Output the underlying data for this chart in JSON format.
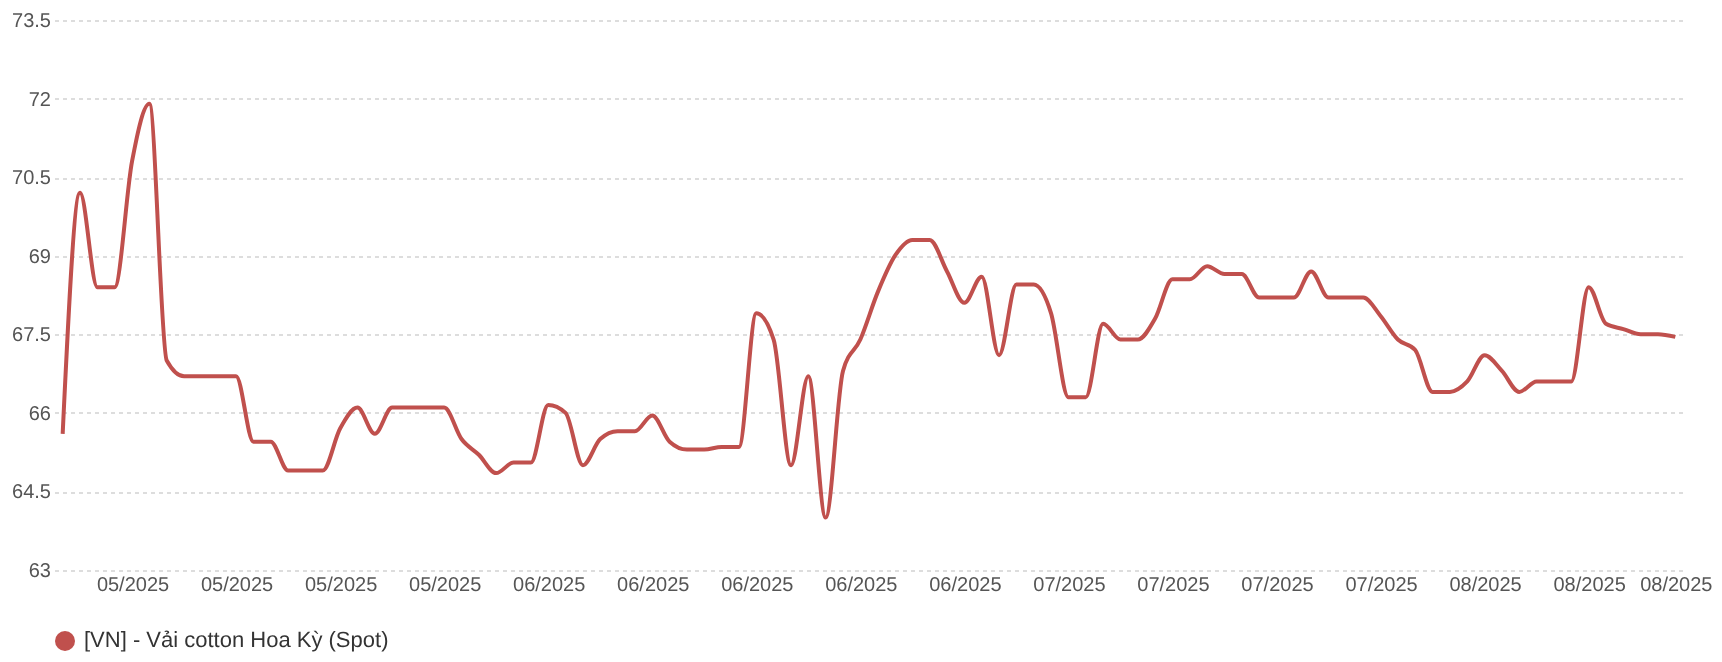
{
  "chart_data": {
    "type": "line",
    "categories": [
      null,
      null,
      null,
      null,
      "05/2025",
      null,
      null,
      null,
      null,
      null,
      "05/2025",
      null,
      null,
      null,
      null,
      null,
      "05/2025",
      null,
      null,
      null,
      null,
      null,
      "05/2025",
      null,
      null,
      null,
      null,
      null,
      "06/2025",
      null,
      null,
      null,
      null,
      null,
      "06/2025",
      null,
      null,
      null,
      null,
      null,
      "06/2025",
      null,
      null,
      null,
      null,
      null,
      "06/2025",
      null,
      null,
      null,
      null,
      null,
      "06/2025",
      null,
      null,
      null,
      null,
      null,
      "07/2025",
      null,
      null,
      null,
      null,
      null,
      "07/2025",
      null,
      null,
      null,
      null,
      null,
      "07/2025",
      null,
      null,
      null,
      null,
      null,
      "07/2025",
      null,
      null,
      null,
      null,
      null,
      "08/2025",
      null,
      null,
      null,
      null,
      null,
      "08/2025",
      null,
      null,
      null,
      null,
      "08/2025"
    ],
    "series": [
      {
        "name": "[VN] - Vải cotton Hoa Kỳ (Spot)",
        "color": "#c0504d",
        "values": [
          65.6,
          70.2,
          68.4,
          68.4,
          70.8,
          71.9,
          67.0,
          66.7,
          66.7,
          66.7,
          66.7,
          65.45,
          65.45,
          64.9,
          64.9,
          64.9,
          65.7,
          66.1,
          65.6,
          66.1,
          66.1,
          66.1,
          66.1,
          65.5,
          65.2,
          64.85,
          65.05,
          65.05,
          66.15,
          66.0,
          65.0,
          65.5,
          65.65,
          65.65,
          65.95,
          65.45,
          65.3,
          65.3,
          65.35,
          65.35,
          67.9,
          67.4,
          65.0,
          66.7,
          64.0,
          66.8,
          67.4,
          68.3,
          69.0,
          69.3,
          69.3,
          68.7,
          68.1,
          68.6,
          67.1,
          68.45,
          68.45,
          67.9,
          66.3,
          66.3,
          67.7,
          67.4,
          67.4,
          67.8,
          68.55,
          68.55,
          68.8,
          68.65,
          68.65,
          68.2,
          68.2,
          68.2,
          68.7,
          68.2,
          68.2,
          68.2,
          67.85,
          67.4,
          67.2,
          66.4,
          66.4,
          66.6,
          67.1,
          66.8,
          66.4,
          66.6,
          66.6,
          66.6,
          68.4,
          67.7,
          67.6,
          67.5,
          67.5,
          67.45
        ]
      }
    ],
    "ylim": [
      63,
      73.5
    ],
    "yticks": [
      63,
      64.5,
      66,
      67.5,
      69,
      70.5,
      72,
      73.5
    ],
    "grid": "y",
    "legend": "bottom",
    "marker": "none",
    "line_style": "solid"
  }
}
